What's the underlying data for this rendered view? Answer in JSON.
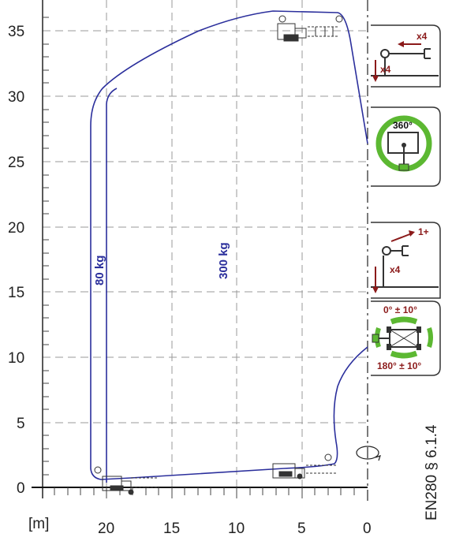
{
  "chart_data": {
    "type": "diagram",
    "x_unit": "[m]",
    "x_ticks": [
      "20",
      "15",
      "10",
      "5",
      "0"
    ],
    "y_ticks": [
      "35",
      "30",
      "25",
      "20",
      "15",
      "10",
      "5",
      "0"
    ],
    "grid": true,
    "load_labels": [
      "80 kg",
      "300 kg"
    ],
    "colors": {
      "envelope": "#2b2f9c",
      "icon_red": "#8b1a1a",
      "icon_green": "#5cb832"
    }
  },
  "side_panels": {
    "outrigger_count_top_horizontal": "x4",
    "outrigger_count_top_vertical": "x4",
    "rotation_full": "360°",
    "mid_count_arrow": "1+",
    "mid_count_vertical": "x4",
    "rotation_front": "0° ± 10°",
    "rotation_rear": "180° ± 10°"
  },
  "standard_ref": "EN280  § 6.1.4"
}
